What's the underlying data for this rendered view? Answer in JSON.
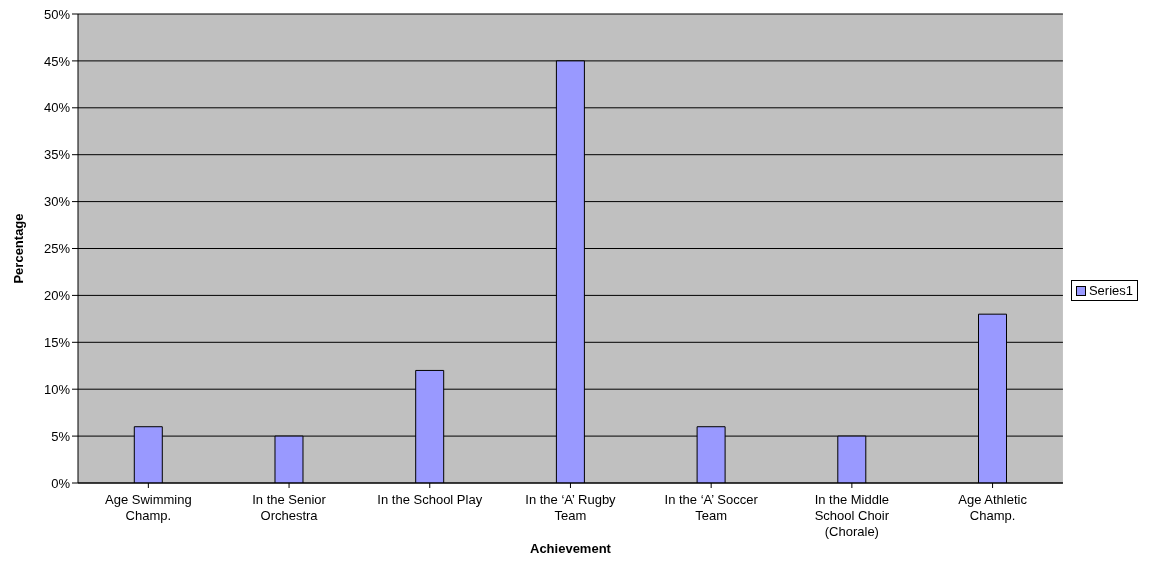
{
  "chart_data": {
    "type": "bar",
    "xlabel": "Achievement",
    "ylabel": "Percentage",
    "categories": [
      "Age Swimming Champ.",
      "In the Senior Orchestra",
      "In the School Play",
      "In the ‘A’ Rugby Team",
      "In the ‘A’ Soccer Team",
      "In the Middle School Choir (Chorale)",
      "Age Athletic Champ."
    ],
    "series": [
      {
        "name": "Series1",
        "color": "#9999ff",
        "values": [
          6,
          5,
          12,
          45,
          6,
          5,
          18
        ]
      }
    ],
    "ylim": [
      0,
      50
    ],
    "yticks": [
      {
        "value": 0,
        "label": "0%"
      },
      {
        "value": 5,
        "label": "5%"
      },
      {
        "value": 10,
        "label": "10%"
      },
      {
        "value": 15,
        "label": "15%"
      },
      {
        "value": 20,
        "label": "20%"
      },
      {
        "value": 25,
        "label": "25%"
      },
      {
        "value": 30,
        "label": "30%"
      },
      {
        "value": 35,
        "label": "35%"
      },
      {
        "value": 40,
        "label": "40%"
      },
      {
        "value": 45,
        "label": "45%"
      },
      {
        "value": 50,
        "label": "50%"
      }
    ],
    "grid": "y",
    "legend": "right"
  }
}
